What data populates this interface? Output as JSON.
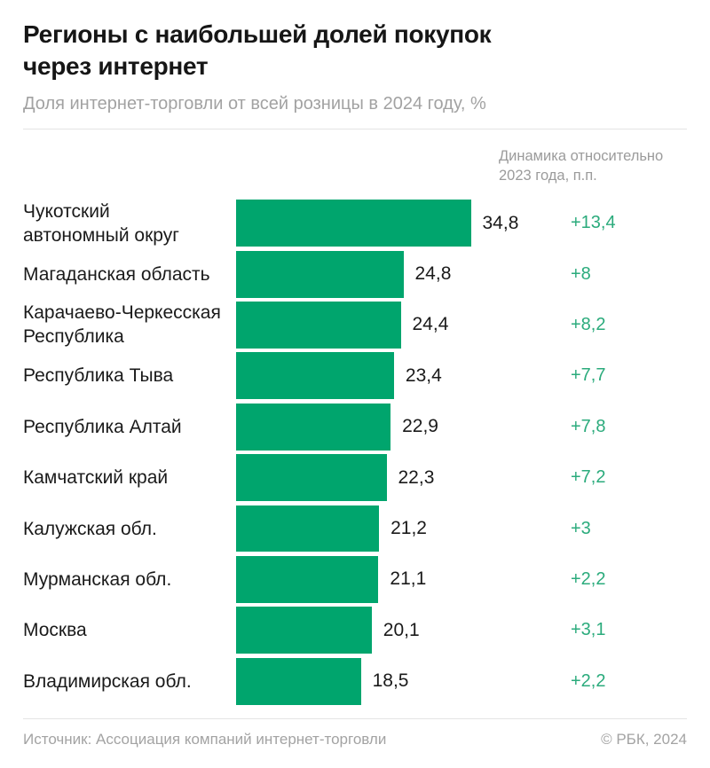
{
  "title": "Регионы с наибольшей долей покупок через интернет",
  "subtitle": "Доля интернет-торговли от всей розницы в 2024 году, %",
  "delta_header": "Динамика относительно 2023 года, п.п.",
  "footer": {
    "source": "Источник: Ассоциация компаний интернет-торговли",
    "copyright": "© РБК, 2024"
  },
  "colors": {
    "bar": "#00a56d",
    "delta_text": "#2bab7c",
    "text_primary": "#1a1a1a",
    "text_muted": "#9b9b9b",
    "divider": "#e4e4e4"
  },
  "chart_data": {
    "type": "bar",
    "orientation": "horizontal",
    "title": "Регионы с наибольшей долей покупок через интернет",
    "subtitle": "Доля интернет-торговли от всей розницы в 2024 году, %",
    "grid": false,
    "legend": false,
    "xlim": [
      0,
      34.8
    ],
    "categories": [
      "Чукотский\nавтономный округ",
      "Магаданская область",
      "Карачаево-Черкесская\nРеспублика",
      "Республика Тыва",
      "Республика Алтай",
      "Камчатский край",
      "Калужская обл.",
      "Мурманская обл.",
      "Москва",
      "Владимирская обл."
    ],
    "values": [
      34.8,
      24.8,
      24.4,
      23.4,
      22.9,
      22.3,
      21.2,
      21.1,
      20.1,
      18.5
    ],
    "value_labels": [
      "34,8",
      "24,8",
      "24,4",
      "23,4",
      "22,9",
      "22,3",
      "21,2",
      "21,1",
      "20,1",
      "18,5"
    ],
    "delta_series": {
      "name": "Динамика относительно 2023 года, п.п.",
      "labels": [
        "+13,4",
        "+8",
        "+8,2",
        "+7,7",
        "+7,8",
        "+7,2",
        "+3",
        "+2,2",
        "+3,1",
        "+2,2"
      ]
    }
  }
}
